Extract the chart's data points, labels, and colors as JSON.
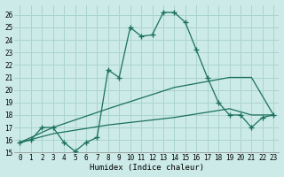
{
  "xlabel": "Humidex (Indice chaleur)",
  "bg_color": "#cceae7",
  "grid_color": "#aad4d0",
  "line_color": "#1a7060",
  "xlim": [
    -0.5,
    23.5
  ],
  "ylim": [
    15,
    26.8
  ],
  "xticks": [
    0,
    1,
    2,
    3,
    4,
    5,
    6,
    7,
    8,
    9,
    10,
    11,
    12,
    13,
    14,
    15,
    16,
    17,
    18,
    19,
    20,
    21,
    22,
    23
  ],
  "yticks": [
    15,
    16,
    17,
    18,
    19,
    20,
    21,
    22,
    23,
    24,
    25,
    26
  ],
  "line1_x": [
    0,
    1,
    2,
    3,
    4,
    5,
    6,
    7,
    8,
    9,
    10,
    11,
    12,
    13,
    14,
    15,
    16,
    17,
    18,
    19,
    20,
    21,
    22,
    23
  ],
  "line1_y": [
    15.8,
    16.0,
    17.0,
    17.0,
    15.8,
    15.1,
    15.8,
    16.2,
    21.6,
    21.0,
    25.0,
    24.3,
    24.4,
    26.2,
    26.2,
    25.4,
    23.2,
    21.0,
    19.0,
    18.0,
    18.0,
    17.0,
    17.8,
    18.0
  ],
  "line2_x": [
    0,
    3,
    8,
    14,
    19,
    21,
    23
  ],
  "line2_y": [
    15.8,
    17.0,
    18.5,
    20.2,
    21.0,
    21.0,
    18.0
  ],
  "line3_x": [
    0,
    3,
    8,
    14,
    19,
    21,
    23
  ],
  "line3_y": [
    15.8,
    16.5,
    17.2,
    17.8,
    18.5,
    18.0,
    18.0
  ]
}
